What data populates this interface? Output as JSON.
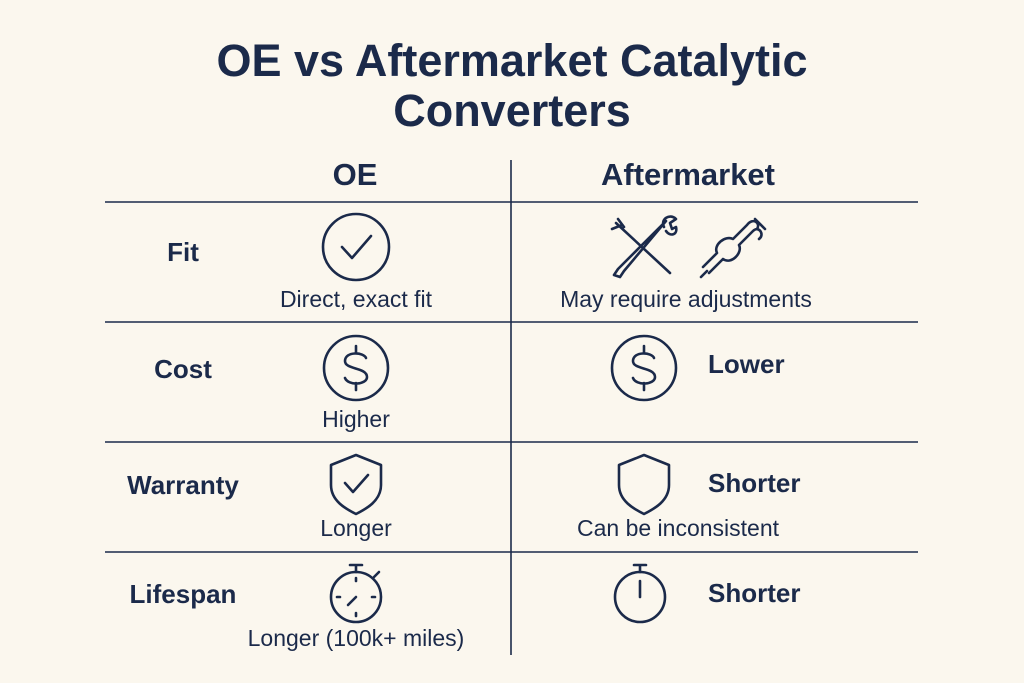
{
  "title": "OE vs Aftermarket Catalytic Converters",
  "columns": [
    "OE",
    "Aftermarket"
  ],
  "rows": [
    {
      "label": "Fit",
      "oe": {
        "note": "Direct, exact fit"
      },
      "aftermarket": {
        "note": "May require adjustments"
      }
    },
    {
      "label": "Cost",
      "oe": {
        "note": "Higher"
      },
      "aftermarket": {
        "side": "Lower"
      }
    },
    {
      "label": "Warranty",
      "oe": {
        "note": "Longer"
      },
      "aftermarket": {
        "side": "Shorter",
        "note": "Can be inconsistent"
      }
    },
    {
      "label": "Lifespan",
      "oe": {
        "note": "Longer (100k+ miles)"
      },
      "aftermarket": {
        "side": "Shorter"
      }
    }
  ]
}
